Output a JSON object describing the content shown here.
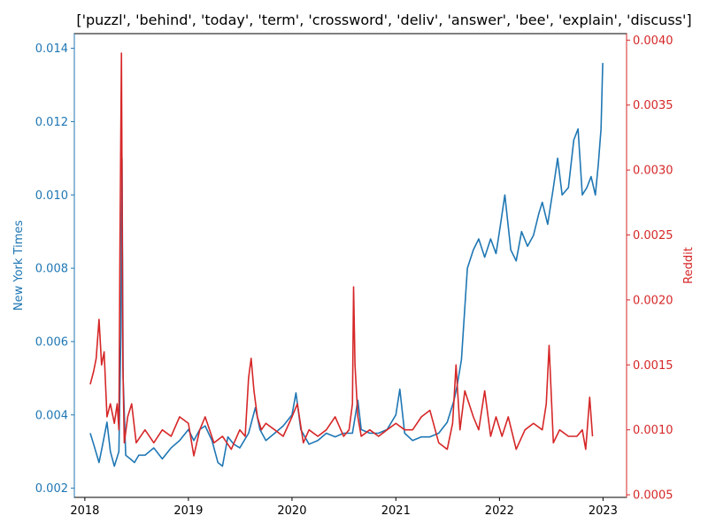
{
  "chart_data": {
    "type": "line",
    "title": "['puzzl', 'behind', 'today', 'term', 'crossword', 'deliv', 'answer', 'bee', 'explain', 'discuss']",
    "xlabel": "",
    "x_ticks": [
      "2018",
      "2019",
      "2020",
      "2021",
      "2022",
      "2023"
    ],
    "xlim": [
      "2017-11-25",
      "2023-03-25"
    ],
    "left_axis": {
      "label": "New York Times",
      "color": "#1f77b4",
      "ylim": [
        0.00175,
        0.0144
      ],
      "ticks": [
        "0.002",
        "0.004",
        "0.006",
        "0.008",
        "0.010",
        "0.012",
        "0.014"
      ]
    },
    "right_axis": {
      "label": "Reddit",
      "color": "#d62728",
      "ylim": [
        0.00048,
        0.00405
      ],
      "ticks": [
        "0.0005",
        "0.0010",
        "0.0015",
        "0.0020",
        "0.0025",
        "0.0030",
        "0.0035",
        "0.0040"
      ]
    },
    "grid": false,
    "series": [
      {
        "name": "New York Times",
        "axis": "left",
        "color": "#1f77b4",
        "x": [
          "2018-01-20",
          "2018-02-01",
          "2018-02-20",
          "2018-03-05",
          "2018-03-20",
          "2018-04-01",
          "2018-04-15",
          "2018-05-01",
          "2018-05-08",
          "2018-05-12",
          "2018-05-16",
          "2018-05-25",
          "2018-06-10",
          "2018-06-25",
          "2018-07-10",
          "2018-08-01",
          "2018-09-01",
          "2018-10-01",
          "2018-11-01",
          "2018-12-01",
          "2019-01-01",
          "2019-01-20",
          "2019-02-10",
          "2019-03-01",
          "2019-03-25",
          "2019-04-15",
          "2019-05-01",
          "2019-05-20",
          "2019-06-10",
          "2019-07-01",
          "2019-08-01",
          "2019-08-25",
          "2019-09-10",
          "2019-10-01",
          "2019-11-01",
          "2019-12-01",
          "2020-01-01",
          "2020-01-15",
          "2020-02-01",
          "2020-03-01",
          "2020-04-01",
          "2020-05-01",
          "2020-06-01",
          "2020-07-01",
          "2020-08-01",
          "2020-08-20",
          "2020-09-01",
          "2020-10-01",
          "2020-11-01",
          "2020-12-01",
          "2021-01-01",
          "2021-01-15",
          "2021-02-01",
          "2021-03-01",
          "2021-04-01",
          "2021-05-01",
          "2021-06-01",
          "2021-07-01",
          "2021-07-25",
          "2021-08-05",
          "2021-08-20",
          "2021-09-10",
          "2021-10-01",
          "2021-10-20",
          "2021-11-10",
          "2021-12-01",
          "2021-12-20",
          "2022-01-01",
          "2022-01-20",
          "2022-02-10",
          "2022-03-01",
          "2022-03-20",
          "2022-04-10",
          "2022-05-01",
          "2022-05-20",
          "2022-06-01",
          "2022-06-20",
          "2022-07-10",
          "2022-07-25",
          "2022-08-10",
          "2022-09-01",
          "2022-09-20",
          "2022-10-05",
          "2022-10-20",
          "2022-11-05",
          "2022-11-20",
          "2022-12-05",
          "2022-12-15",
          "2022-12-25",
          "2022-12-31"
        ],
        "y": [
          0.0035,
          0.0032,
          0.0027,
          0.0032,
          0.0038,
          0.003,
          0.0026,
          0.003,
          0.0062,
          0.011,
          0.005,
          0.0029,
          0.0028,
          0.0027,
          0.0029,
          0.0029,
          0.0031,
          0.0028,
          0.0031,
          0.0033,
          0.0036,
          0.0033,
          0.0036,
          0.0037,
          0.0033,
          0.0027,
          0.0026,
          0.0034,
          0.0032,
          0.0031,
          0.0035,
          0.0042,
          0.0036,
          0.0033,
          0.0035,
          0.0037,
          0.004,
          0.0046,
          0.0036,
          0.0032,
          0.0033,
          0.0035,
          0.0034,
          0.0035,
          0.0035,
          0.0044,
          0.0036,
          0.0035,
          0.0035,
          0.0036,
          0.004,
          0.0047,
          0.0035,
          0.0033,
          0.0034,
          0.0034,
          0.0035,
          0.0038,
          0.0044,
          0.0048,
          0.0055,
          0.008,
          0.0085,
          0.0088,
          0.0083,
          0.0088,
          0.0084,
          0.009,
          0.01,
          0.0085,
          0.0082,
          0.009,
          0.0086,
          0.0089,
          0.0095,
          0.0098,
          0.0092,
          0.0102,
          0.011,
          0.01,
          0.0102,
          0.0115,
          0.0118,
          0.01,
          0.0102,
          0.0105,
          0.01,
          0.0108,
          0.0118,
          0.0136
        ]
      },
      {
        "name": "Reddit",
        "axis": "right",
        "color": "#d62728",
        "x": [
          "2018-01-20",
          "2018-02-01",
          "2018-02-10",
          "2018-02-20",
          "2018-03-01",
          "2018-03-10",
          "2018-03-20",
          "2018-04-01",
          "2018-04-15",
          "2018-04-25",
          "2018-05-01",
          "2018-05-05",
          "2018-05-10",
          "2018-05-15",
          "2018-05-20",
          "2018-06-01",
          "2018-06-15",
          "2018-07-01",
          "2018-08-01",
          "2018-09-01",
          "2018-10-01",
          "2018-11-01",
          "2018-12-01",
          "2019-01-01",
          "2019-01-20",
          "2019-02-10",
          "2019-03-01",
          "2019-04-01",
          "2019-05-01",
          "2019-06-01",
          "2019-07-01",
          "2019-07-20",
          "2019-08-01",
          "2019-08-10",
          "2019-08-20",
          "2019-09-01",
          "2019-09-15",
          "2019-10-01",
          "2019-11-01",
          "2019-12-01",
          "2020-01-01",
          "2020-01-20",
          "2020-02-10",
          "2020-03-01",
          "2020-04-01",
          "2020-05-01",
          "2020-06-01",
          "2020-07-01",
          "2020-07-20",
          "2020-08-01",
          "2020-08-05",
          "2020-08-10",
          "2020-08-20",
          "2020-09-01",
          "2020-10-01",
          "2020-11-01",
          "2020-12-01",
          "2021-01-01",
          "2021-02-01",
          "2021-03-01",
          "2021-04-01",
          "2021-05-01",
          "2021-06-01",
          "2021-07-01",
          "2021-07-20",
          "2021-08-01",
          "2021-08-15",
          "2021-09-01",
          "2021-10-01",
          "2021-10-20",
          "2021-11-10",
          "2021-12-01",
          "2021-12-20",
          "2022-01-10",
          "2022-02-01",
          "2022-03-01",
          "2022-04-01",
          "2022-05-01",
          "2022-06-01",
          "2022-06-15",
          "2022-06-25",
          "2022-07-10",
          "2022-08-01",
          "2022-09-01",
          "2022-10-01",
          "2022-10-20",
          "2022-11-01",
          "2022-11-15",
          "2022-11-25"
        ],
        "y": [
          0.00135,
          0.00145,
          0.00155,
          0.00185,
          0.0015,
          0.0016,
          0.0011,
          0.0012,
          0.00105,
          0.0012,
          0.001,
          0.0025,
          0.0039,
          0.0015,
          0.0009,
          0.0011,
          0.0012,
          0.0009,
          0.001,
          0.0009,
          0.001,
          0.00095,
          0.0011,
          0.00105,
          0.0008,
          0.001,
          0.0011,
          0.0009,
          0.00095,
          0.00085,
          0.001,
          0.00095,
          0.0014,
          0.00155,
          0.0013,
          0.0011,
          0.001,
          0.00105,
          0.001,
          0.00095,
          0.0011,
          0.0012,
          0.0009,
          0.001,
          0.00095,
          0.001,
          0.0011,
          0.00095,
          0.001,
          0.0012,
          0.0021,
          0.0015,
          0.0011,
          0.00095,
          0.001,
          0.00095,
          0.001,
          0.00105,
          0.001,
          0.001,
          0.0011,
          0.00115,
          0.0009,
          0.00085,
          0.00105,
          0.0015,
          0.001,
          0.0013,
          0.0011,
          0.001,
          0.0013,
          0.00095,
          0.0011,
          0.00095,
          0.0011,
          0.00085,
          0.001,
          0.00105,
          0.001,
          0.0012,
          0.00165,
          0.0009,
          0.001,
          0.00095,
          0.00095,
          0.001,
          0.00085,
          0.00125,
          0.00095
        ]
      }
    ]
  }
}
